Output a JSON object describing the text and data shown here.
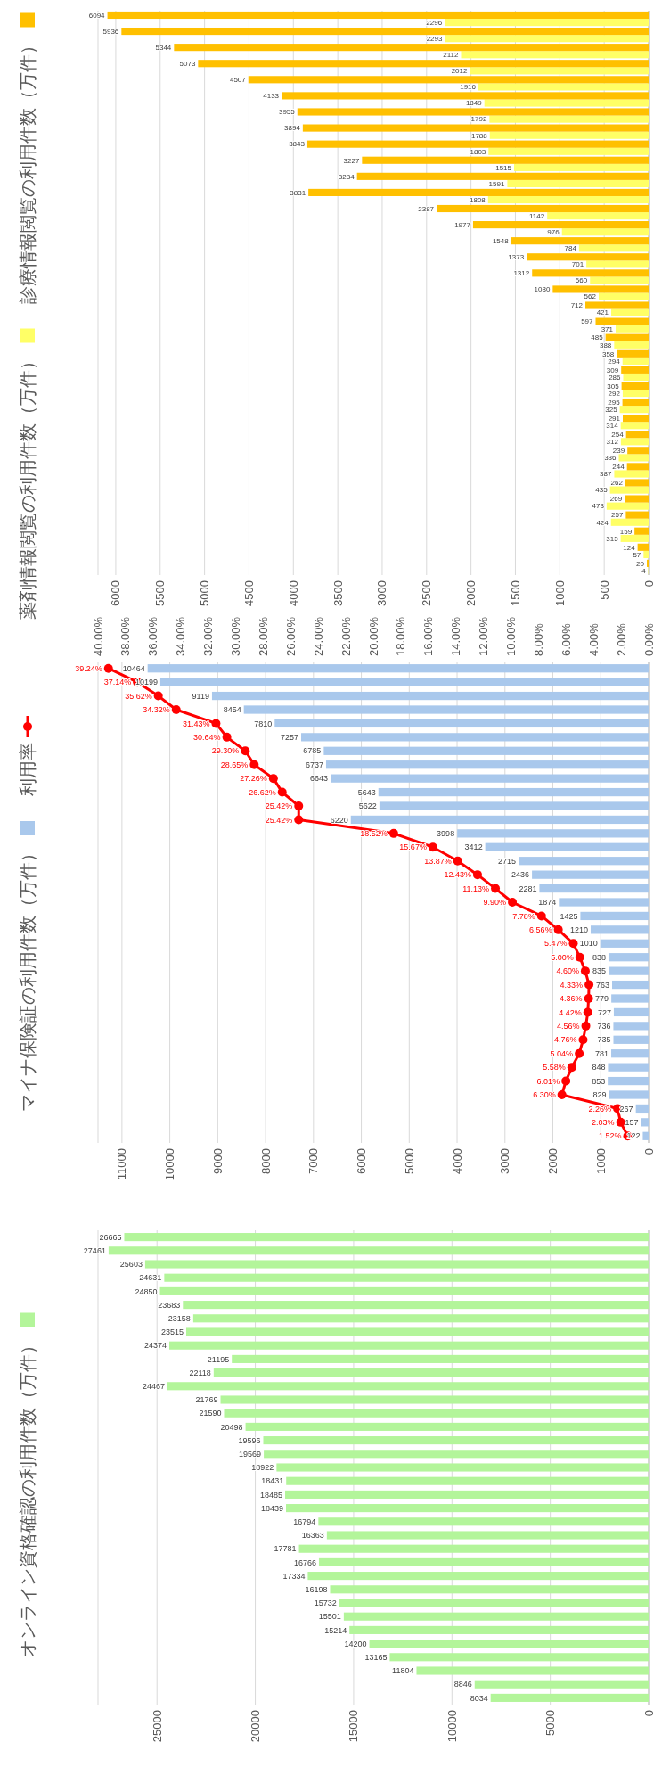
{
  "chart_data": [
    {
      "type": "bar",
      "orientation": "horizontal",
      "categories": [
        null,
        null,
        null,
        null,
        null,
        null,
        null,
        null,
        null,
        null,
        null,
        null,
        null,
        null,
        null,
        null,
        null,
        null,
        null,
        null,
        null,
        null,
        null,
        null,
        null,
        null,
        null,
        null,
        null,
        null,
        null,
        null,
        null,
        null,
        null
      ],
      "series": [
        {
          "name": "薬剤情報閲覧の利用件数（万件）",
          "color": "#ffff66",
          "values": [
            2296,
            2293,
            2112,
            2012,
            1916,
            1849,
            1792,
            1788,
            1803,
            1515,
            1591,
            1808,
            1142,
            976,
            784,
            701,
            660,
            562,
            421,
            371,
            388,
            294,
            286,
            292,
            325,
            314,
            312,
            336,
            387,
            435,
            473,
            424,
            315,
            57,
            4
          ]
        },
        {
          "name": "診療情報閲覧の利用件数（万件）",
          "color": "#ffc000",
          "values": [
            6094,
            5936,
            5344,
            5073,
            4507,
            4133,
            3955,
            3894,
            3843,
            3227,
            3284,
            3831,
            2387,
            1977,
            1548,
            1373,
            1312,
            1080,
            712,
            597,
            485,
            358,
            309,
            305,
            295,
            291,
            254,
            239,
            244,
            262,
            269,
            257,
            159,
            124,
            20
          ]
        }
      ],
      "xlim": [
        6200,
        0
      ],
      "xticks": [
        0,
        500,
        1000,
        1500,
        2000,
        2500,
        3000,
        3500,
        4000,
        4500,
        5000,
        5500,
        6000
      ],
      "grid": "x",
      "legend": "left",
      "data_labels": true
    },
    {
      "type": "bar",
      "orientation": "horizontal",
      "categories": [
        null,
        null,
        null,
        null,
        null,
        null,
        null,
        null,
        null,
        null,
        null,
        null,
        null,
        null,
        null,
        null,
        null,
        null,
        null,
        null,
        null,
        null,
        null,
        null,
        null,
        null,
        null,
        null,
        null,
        null,
        null,
        null,
        null,
        null,
        null
      ],
      "series": [
        {
          "name": "マイナ保険証の利用件数（万件）",
          "color": "#a9c8ec",
          "values": [
            10464,
            10199,
            9119,
            8454,
            7810,
            7257,
            6785,
            6737,
            6643,
            5643,
            5622,
            6220,
            3998,
            3412,
            2715,
            2436,
            2281,
            1874,
            1425,
            1210,
            1010,
            838,
            835,
            763,
            779,
            727,
            736,
            735,
            781,
            848,
            853,
            829,
            267,
            157,
            122
          ],
          "value_labels": [
            "10464",
            "10199",
            "9119",
            "8454",
            "7810",
            "7257",
            "6785",
            "6737",
            "6643",
            "5643",
            "5622",
            "6220",
            "3998",
            "3412",
            "2715",
            "2436",
            "2281",
            "1874",
            "1425",
            "1210",
            "1010",
            "838",
            "835",
            "763",
            "779",
            "727",
            "736",
            "735",
            "781",
            "848",
            "853",
            "829",
            "267",
            "157",
            "122"
          ]
        },
        {
          "name": "利用率",
          "type": "line",
          "axis": "x2",
          "color": "#ff0000",
          "values": [
            39.24,
            37.14,
            35.62,
            34.32,
            31.43,
            30.64,
            29.3,
            28.65,
            27.26,
            26.62,
            25.42,
            25.42,
            18.52,
            15.67,
            13.87,
            12.43,
            11.13,
            9.9,
            7.78,
            6.56,
            5.47,
            5.0,
            4.6,
            4.33,
            4.36,
            4.42,
            4.56,
            4.76,
            5.04,
            5.58,
            6.01,
            6.3,
            2.26,
            2.03,
            1.52
          ],
          "value_labels": [
            "39.24%",
            "37.14%",
            "35.62%",
            "34.32%",
            "31.43%",
            "30.64%",
            "29.30%",
            "28.65%",
            "27.26%",
            "26.62%",
            "25.42%",
            "25.42%",
            "18.52%",
            "15.67%",
            "13.87%",
            "12.43%",
            "11.13%",
            "9.90%",
            "7.78%",
            "6.56%",
            "5.47%",
            "5.00%",
            "4.60%",
            "4.33%",
            "4.36%",
            "4.42%",
            "4.56%",
            "4.76%",
            "5.04%",
            "5.58%",
            "6.01%",
            "6.30%",
            "2.26%",
            "2.03%",
            "1.52%"
          ]
        }
      ],
      "xlim": [
        11500,
        0
      ],
      "xticks": [
        0,
        1000,
        2000,
        3000,
        4000,
        5000,
        6000,
        7000,
        8000,
        9000,
        10000,
        11000
      ],
      "x2lim": [
        40,
        0
      ],
      "x2ticks": [
        {
          "value": 0,
          "label": "0.00%"
        },
        {
          "value": 2,
          "label": "2.00%"
        },
        {
          "value": 4,
          "label": "4.00%"
        },
        {
          "value": 6,
          "label": "6.00%"
        },
        {
          "value": 8,
          "label": "8.00%"
        },
        {
          "value": 10,
          "label": "10.00%"
        },
        {
          "value": 12,
          "label": "12.00%"
        },
        {
          "value": 14,
          "label": "14.00%"
        },
        {
          "value": 16,
          "label": "16.00%"
        },
        {
          "value": 18,
          "label": "18.00%"
        },
        {
          "value": 20,
          "label": "20.00%"
        },
        {
          "value": 22,
          "label": "22.00%"
        },
        {
          "value": 24,
          "label": "24.00%"
        },
        {
          "value": 26,
          "label": "26.00%"
        },
        {
          "value": 28,
          "label": "28.00%"
        },
        {
          "value": 30,
          "label": "30.00%"
        },
        {
          "value": 32,
          "label": "32.00%"
        },
        {
          "value": 34,
          "label": "34.00%"
        },
        {
          "value": 36,
          "label": "36.00%"
        },
        {
          "value": 38,
          "label": "38.00%"
        },
        {
          "value": 40,
          "label": "40.00%"
        }
      ],
      "grid": "x",
      "legend": "left",
      "marker": "circle",
      "line_style": "solid"
    },
    {
      "type": "bar",
      "orientation": "horizontal",
      "categories": [
        null,
        null,
        null,
        null,
        null,
        null,
        null,
        null,
        null,
        null,
        null,
        null,
        null,
        null,
        null,
        null,
        null,
        null,
        null,
        null,
        null,
        null,
        null,
        null,
        null,
        null,
        null,
        null,
        null,
        null,
        null,
        null,
        null,
        null,
        null
      ],
      "series": [
        {
          "name": "オンライン資格確認の利用件数（万件）",
          "color": "#b3f59a",
          "values": [
            26665,
            27461,
            25603,
            24631,
            24850,
            23683,
            23158,
            23515,
            24374,
            21195,
            22118,
            24467,
            21769,
            21590,
            20498,
            19596,
            19569,
            18922,
            18431,
            18485,
            18439,
            16794,
            16363,
            17781,
            16766,
            17334,
            16198,
            15732,
            15501,
            15214,
            14200,
            13165,
            11804,
            8846,
            8034
          ]
        }
      ],
      "xlim": [
        28000,
        0
      ],
      "xticks": [
        0,
        5000,
        10000,
        15000,
        20000,
        25000
      ],
      "grid": "x",
      "legend": "left",
      "data_labels": true
    }
  ]
}
